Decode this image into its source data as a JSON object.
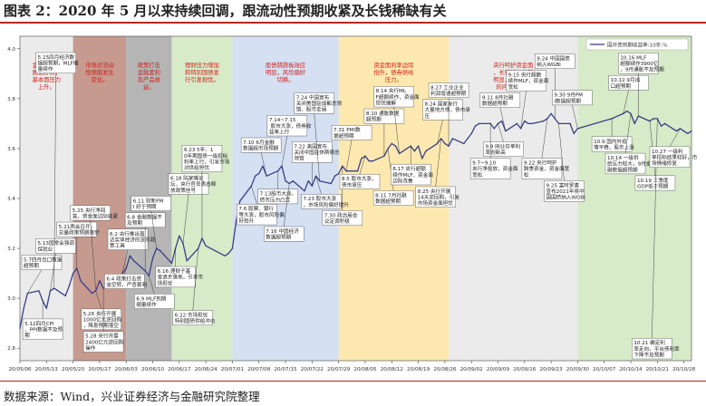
{
  "title": "图表 2：2020 年 5 月以来持续回调，跟流动性预期收紧及长钱稀缺有关",
  "source": "数据来源：Wind，兴业证券经济与金融研究院整理",
  "colors": {
    "line": "#3b3f86",
    "accent_red": "#b22a1e",
    "band_gray": "#ebebeb",
    "band_pink": "#c79a8f",
    "band_slate": "#b5b5b5",
    "band_green": "#d7ebc9",
    "band_blue": "#d5e0f3",
    "band_yellow": "#fde9b0",
    "band_text_red": "#d0201a",
    "band_text_blue": "#2457b0"
  },
  "chart_data": {
    "type": "line",
    "legend": "top-right",
    "grid": false,
    "ylim": [
      2.75,
      4.05
    ],
    "yticks": [
      "2.8",
      "3.0",
      "3.2",
      "3.4",
      "3.6",
      "3.8",
      "4.0"
    ],
    "xticks": [
      "20/05/06",
      "20/05/13",
      "20/05/20",
      "20/05/27",
      "20/06/03",
      "20/06/10",
      "20/06/17",
      "20/06/24",
      "20/07/01",
      "20/07/08",
      "20/07/15",
      "20/07/22",
      "20/07/29",
      "20/08/05",
      "20/08/12",
      "20/08/19",
      "20/08/26",
      "20/09/02",
      "20/09/09",
      "20/09/16",
      "20/09/23",
      "20/09/30",
      "20/10/07",
      "20/10/14",
      "20/10/21",
      "20/10/28"
    ],
    "x_start": "2020-05-06",
    "x_end": "2020-10-30",
    "series": [
      {
        "name": "国开债到期收益率:10年:%",
        "points": [
          [
            "2020-05-06",
            2.88
          ],
          [
            "2020-05-07",
            2.96
          ],
          [
            "2020-05-08",
            3.02
          ],
          [
            "2020-05-11",
            3.03
          ],
          [
            "2020-05-12",
            2.99
          ],
          [
            "2020-05-13",
            2.96
          ],
          [
            "2020-05-14",
            3.03
          ],
          [
            "2020-05-15",
            3.04
          ],
          [
            "2020-05-18",
            3.01
          ],
          [
            "2020-05-19",
            3.05
          ],
          [
            "2020-05-20",
            3.1
          ],
          [
            "2020-05-21",
            3.12
          ],
          [
            "2020-05-22",
            3.07
          ],
          [
            "2020-05-25",
            3.02
          ],
          [
            "2020-05-26",
            3.03
          ],
          [
            "2020-05-27",
            3.07
          ],
          [
            "2020-05-28",
            3.04
          ],
          [
            "2020-05-29",
            3.05
          ],
          [
            "2020-06-01",
            3.06
          ],
          [
            "2020-06-02",
            3.1
          ],
          [
            "2020-06-03",
            3.12
          ],
          [
            "2020-06-04",
            3.17
          ],
          [
            "2020-06-05",
            3.15
          ],
          [
            "2020-06-08",
            3.11
          ],
          [
            "2020-06-09",
            3.09
          ],
          [
            "2020-06-10",
            3.16
          ],
          [
            "2020-06-11",
            3.2
          ],
          [
            "2020-06-12",
            3.19
          ],
          [
            "2020-06-15",
            3.14
          ],
          [
            "2020-06-16",
            3.2
          ],
          [
            "2020-06-17",
            3.25
          ],
          [
            "2020-06-18",
            3.22
          ],
          [
            "2020-06-19",
            3.15
          ],
          [
            "2020-06-22",
            3.2
          ],
          [
            "2020-06-23",
            3.24
          ],
          [
            "2020-06-24",
            3.21
          ],
          [
            "2020-06-29",
            3.17
          ],
          [
            "2020-06-30",
            3.18
          ],
          [
            "2020-07-01",
            3.2
          ],
          [
            "2020-07-02",
            3.31
          ],
          [
            "2020-07-03",
            3.39
          ],
          [
            "2020-07-06",
            3.45
          ],
          [
            "2020-07-07",
            3.49
          ],
          [
            "2020-07-08",
            3.5
          ],
          [
            "2020-07-09",
            3.53
          ],
          [
            "2020-07-10",
            3.49
          ],
          [
            "2020-07-13",
            3.51
          ],
          [
            "2020-07-14",
            3.53
          ],
          [
            "2020-07-15",
            3.47
          ],
          [
            "2020-07-16",
            3.46
          ],
          [
            "2020-07-17",
            3.47
          ],
          [
            "2020-07-20",
            3.43
          ],
          [
            "2020-07-21",
            3.47
          ],
          [
            "2020-07-22",
            3.45
          ],
          [
            "2020-07-23",
            3.49
          ],
          [
            "2020-07-24",
            3.47
          ],
          [
            "2020-07-27",
            3.46
          ],
          [
            "2020-07-28",
            3.49
          ],
          [
            "2020-07-29",
            3.5
          ],
          [
            "2020-07-30",
            3.53
          ],
          [
            "2020-07-31",
            3.51
          ],
          [
            "2020-08-03",
            3.51
          ],
          [
            "2020-08-04",
            3.56
          ],
          [
            "2020-08-05",
            3.57
          ],
          [
            "2020-08-06",
            3.55
          ],
          [
            "2020-08-07",
            3.55
          ],
          [
            "2020-08-10",
            3.57
          ],
          [
            "2020-08-11",
            3.6
          ],
          [
            "2020-08-12",
            3.62
          ],
          [
            "2020-08-13",
            3.61
          ],
          [
            "2020-08-14",
            3.58
          ],
          [
            "2020-08-17",
            3.61
          ],
          [
            "2020-08-18",
            3.59
          ],
          [
            "2020-08-19",
            3.61
          ],
          [
            "2020-08-20",
            3.56
          ],
          [
            "2020-08-21",
            3.59
          ],
          [
            "2020-08-24",
            3.62
          ],
          [
            "2020-08-25",
            3.64
          ],
          [
            "2020-08-26",
            3.62
          ],
          [
            "2020-08-27",
            3.61
          ],
          [
            "2020-08-28",
            3.64
          ],
          [
            "2020-08-31",
            3.62
          ],
          [
            "2020-09-01",
            3.64
          ],
          [
            "2020-09-02",
            3.66
          ],
          [
            "2020-09-03",
            3.69
          ],
          [
            "2020-09-04",
            3.7
          ],
          [
            "2020-09-07",
            3.7
          ],
          [
            "2020-09-08",
            3.68
          ],
          [
            "2020-09-09",
            3.7
          ],
          [
            "2020-09-10",
            3.71
          ],
          [
            "2020-09-11",
            3.67
          ],
          [
            "2020-09-14",
            3.7
          ],
          [
            "2020-09-15",
            3.68
          ],
          [
            "2020-09-16",
            3.71
          ],
          [
            "2020-09-17",
            3.7
          ],
          [
            "2020-09-18",
            3.7
          ],
          [
            "2020-09-21",
            3.71
          ],
          [
            "2020-09-22",
            3.72
          ],
          [
            "2020-09-23",
            3.74
          ],
          [
            "2020-09-24",
            3.72
          ],
          [
            "2020-09-25",
            3.7
          ],
          [
            "2020-09-28",
            3.7
          ],
          [
            "2020-09-29",
            3.66
          ],
          [
            "2020-09-30",
            3.68
          ],
          [
            "2020-10-09",
            3.72
          ],
          [
            "2020-10-12",
            3.74
          ],
          [
            "2020-10-13",
            3.75
          ],
          [
            "2020-10-14",
            3.74
          ],
          [
            "2020-10-15",
            3.7
          ],
          [
            "2020-10-16",
            3.73
          ],
          [
            "2020-10-19",
            3.71
          ],
          [
            "2020-10-20",
            3.72
          ],
          [
            "2020-10-21",
            3.72
          ],
          [
            "2020-10-22",
            3.69
          ],
          [
            "2020-10-23",
            3.7
          ],
          [
            "2020-10-26",
            3.67
          ],
          [
            "2020-10-27",
            3.68
          ],
          [
            "2020-10-28",
            3.67
          ],
          [
            "2020-10-29",
            3.66
          ],
          [
            "2020-10-30",
            3.67
          ]
        ]
      }
    ],
    "bands": [
      {
        "from": "2020-05-06",
        "to": "2020-05-20",
        "color": "#ebebeb",
        "text": "金融、经济数据好转，基本面压力上升。",
        "text_color": "#d0201a"
      },
      {
        "from": "2020-05-20",
        "to": "2020-06-03",
        "color": "#c79a8f",
        "text": "市场对流动性预期发生变化。",
        "text_color": "#d0201a"
      },
      {
        "from": "2020-06-03",
        "to": "2020-06-15",
        "color": "#b5b5b5",
        "text": "政策打击金融套利及产品收益。",
        "text_color": "#d0201a"
      },
      {
        "from": "2020-06-15",
        "to": "2020-07-01",
        "color": "#d7ebc9",
        "text": "理财压力增加和特别国债发行引发担忧。",
        "text_color": "#d0201a"
      },
      {
        "from": "2020-07-01",
        "to": "2020-07-29",
        "color": "#d5e0f3",
        "text": "股债跷跷板效应明显，风险偏好切换。",
        "text_color": "#d0201a"
      },
      {
        "from": "2020-07-29",
        "to": "2020-08-27",
        "color": "#fde9b0",
        "text": "资金面利率边际抬升，债券供给压力。",
        "text_color": "#d0201a"
      },
      {
        "from": "2020-08-27",
        "to": "2020-09-30",
        "color": "#ebebeb",
        "text": "央行呵护资金面，长钱缺口依然明显，长钱稀缺的问题突出。",
        "text_color": "#d0201a"
      },
      {
        "from": "2020-09-30",
        "to": "2020-10-30",
        "color": "#d7ebc9",
        "text": "",
        "text_color": "#d0201a"
      }
    ],
    "annotations": [
      {
        "date": "2020-05-08",
        "text": "5.7四月出口数据超预期"
      },
      {
        "date": "2020-05-12",
        "text": "5.12四月CPI、PPI数据不及预期"
      },
      {
        "date": "2020-05-14",
        "text": "5.13国常会强调保就业"
      },
      {
        "date": "2020-05-15",
        "text": "5.15四月经济数据超预期，MLF缩量续作"
      },
      {
        "date": "2020-05-21",
        "text": "5.21两会召开，总量政策预期落空"
      },
      {
        "date": "2020-05-26",
        "text": "5.26 央行开展1000亿元逆回购，降息预期落空"
      },
      {
        "date": "2020-05-26",
        "text": "5.25 央行净回笼，资金面边际收紧"
      },
      {
        "date": "2020-05-28",
        "text": "5.28 央行开展2400亿元逆回购操作"
      },
      {
        "date": "2020-06-02",
        "text": "6.2 央行推出直达实体经济的货币政策工具"
      },
      {
        "date": "2020-06-04",
        "text": "6.4 政策打击资金空转，严查套利"
      },
      {
        "date": "2020-06-08",
        "text": "6.8 金融数据不及预期"
      },
      {
        "date": "2020-06-09",
        "text": "6.9 MLF到期缩量续作"
      },
      {
        "date": "2020-06-11",
        "text": "6.11 财新PMI 好于预期"
      },
      {
        "date": "2020-06-16",
        "text": "6.16 理财子基金逐步落地，引发市场担忧"
      },
      {
        "date": "2020-06-18",
        "text": "6.18 陆家嘴论坛，央行官员表态释放政策信号"
      },
      {
        "date": "2020-06-22",
        "text": "6.22 市场担忧特别国债供给冲击"
      },
      {
        "date": "2020-06-23",
        "text": "6.23 5年、10年期国债一级招标利率上行，引发市场对供给担忧"
      },
      {
        "date": "2020-07-06",
        "text": "7.6 股票、银行等大涨，股市风险偏好抬升"
      },
      {
        "date": "2020-07-10",
        "text": "7.10 6月金融数据超市场预期"
      },
      {
        "date": "2020-07-13",
        "text": "7.13股市大涨，债市压力凸显"
      },
      {
        "date": "2020-07-14",
        "text": "7.14~7.15 股市大涨，债券收益率上行"
      },
      {
        "date": "2020-07-16",
        "text": "7.16 中国经济数据超预期"
      },
      {
        "date": "2020-07-22",
        "text": "7.22 美国宣布关闭中国驻休斯顿总领馆"
      },
      {
        "date": "2020-07-23",
        "text": "7.23 股市大涨，市场风险偏好提升"
      },
      {
        "date": "2020-07-24",
        "text": "7.24 中国宣布关闭美国驻成都总领馆，股市走弱"
      },
      {
        "date": "2020-07-30",
        "text": "7.30 政治局会议定调积极"
      },
      {
        "date": "2020-07-31",
        "text": "7.31 PMI数据超预期"
      },
      {
        "date": "2020-08-05",
        "text": "8.5 股市大涨，债市承压"
      },
      {
        "date": "2020-08-10",
        "text": "8.10 通胀数据超预期"
      },
      {
        "date": "2020-08-11",
        "text": "8.11 7月社融数据超预期"
      },
      {
        "date": "2020-08-14",
        "text": "8.14 央行MLF超额续作，资金面担忧缓解"
      },
      {
        "date": "2020-08-17",
        "text": "8.17 央行超额续作MLF，资金面边际改善"
      },
      {
        "date": "2020-08-24",
        "text": "8.24 国家发行大量地方债，债市承压"
      },
      {
        "date": "2020-08-25",
        "text": "8.25 央行开展14天逆回购，引发市场资金面担忧"
      },
      {
        "date": "2020-08-27",
        "text": "8.27 工业企业利润增速超预期"
      },
      {
        "date": "2020-09-09",
        "text": "9.9 同业存单利率创新高"
      },
      {
        "date": "2020-09-11",
        "text": "9.11 8月社融数据超预期"
      },
      {
        "date": "2020-09-07",
        "text": "9.7~9.10 央行净投放，资金面宽松"
      },
      {
        "date": "2020-09-15",
        "text": "9.15 央行超额续作MLF，资金面宽松"
      },
      {
        "date": "2020-09-22",
        "text": "9.22 央行呵护跨季资金，资金面宽松"
      },
      {
        "date": "2020-09-24",
        "text": "9.24 中国国债纳入WGBI"
      },
      {
        "date": "2020-09-25",
        "text": "9.25 富时罗素宣布2021年将中国国债纳入WGBI"
      },
      {
        "date": "2020-09-30",
        "text": "9.30 9月PMI数据超预期"
      },
      {
        "date": "2020-10-09",
        "text": "10.9 国内外疫情平稳，股市上涨"
      },
      {
        "date": "2020-10-12",
        "text": "10.12 9月出口超预期"
      },
      {
        "date": "2020-10-14",
        "text": "10.14 一级供给压力较大，9月金融数据超预期"
      },
      {
        "date": "2020-10-16",
        "text": "10.16 MLF超额续作3900亿，9月通胀不及预期"
      },
      {
        "date": "2020-10-19",
        "text": "10.19 三季度GDP低于预期"
      },
      {
        "date": "2020-10-21",
        "text": "10.21 确定利率走向，平台债利率下降不及预期"
      },
      {
        "date": "2020-10-27",
        "text": "10.27 一级利率招标结果较好，市场情绪修复"
      }
    ]
  }
}
